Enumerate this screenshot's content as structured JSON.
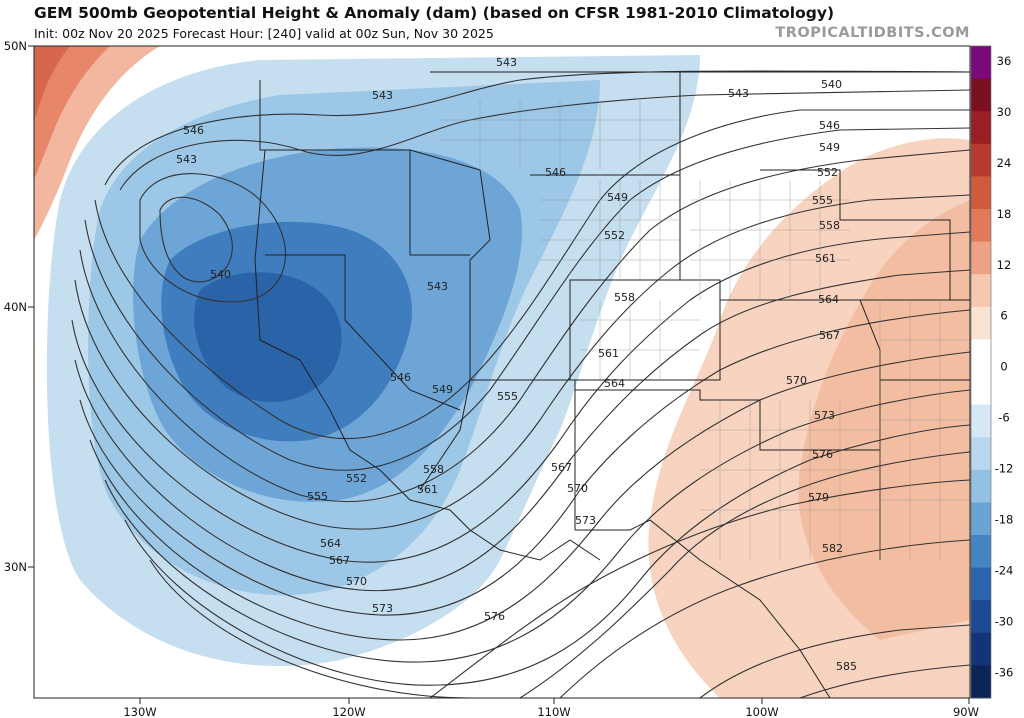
{
  "header": {
    "title": "GEM 500mb Geopotential Height & Anomaly (dam) (based on CFSR 1981-2010 Climatology)",
    "subtitle": "Init: 00z Nov 20 2025   Forecast Hour: [240]   valid at 00z Sun, Nov 30 2025",
    "brand": "TROPICALTIDBITS.COM"
  },
  "axes": {
    "lon_ticks": [
      "130W",
      "120W",
      "110W",
      "100W",
      "90W"
    ],
    "lat_ticks": [
      "50N",
      "40N",
      "30N"
    ]
  },
  "colorbar": {
    "labels": [
      "36",
      "30",
      "24",
      "18",
      "12",
      "6",
      "0",
      "-6",
      "-12",
      "-18",
      "-24",
      "-30",
      "-36"
    ],
    "colors": [
      "#7a0a7a",
      "#7a1020",
      "#9b1e24",
      "#b83a2c",
      "#cf5a3c",
      "#e07a5a",
      "#eea284",
      "#f6c8b0",
      "#fbe3d4",
      "#ffffff",
      "#ffffff",
      "#d6e8f5",
      "#b9d8ee",
      "#93c1e4",
      "#6aa3d4",
      "#4683c2",
      "#2b64ae",
      "#1c4a94",
      "#133577",
      "#0c2558"
    ]
  },
  "contour_labels": [
    "543",
    "543",
    "543",
    "540",
    "546",
    "549",
    "552",
    "555",
    "558",
    "561",
    "564",
    "567",
    "570",
    "573",
    "576",
    "579",
    "582",
    "585",
    "546",
    "543",
    "540",
    "546",
    "549",
    "552",
    "543",
    "546",
    "549",
    "555",
    "558",
    "561",
    "564",
    "567",
    "570",
    "573",
    "552",
    "555",
    "558",
    "561",
    "564",
    "567",
    "570",
    "573",
    "576"
  ]
}
